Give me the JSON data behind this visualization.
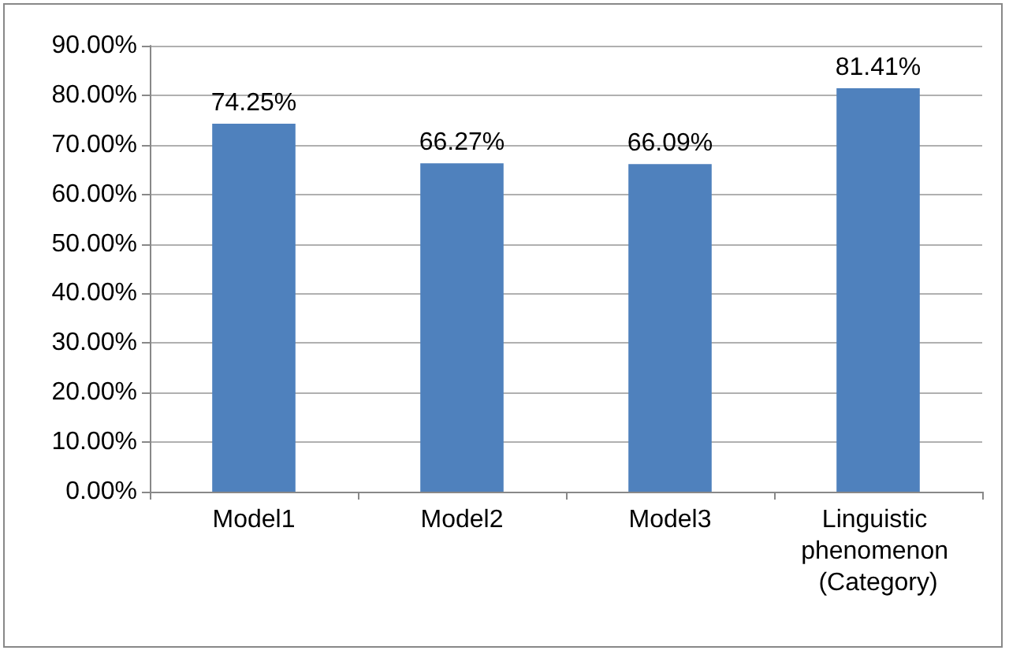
{
  "chart_data": {
    "type": "bar",
    "categories": [
      "Model1",
      "Model2",
      "Model3",
      "Linguistic phenomenon (Category)"
    ],
    "values": [
      74.25,
      66.27,
      66.09,
      81.41
    ],
    "value_labels": [
      "74.25%",
      "66.27%",
      "66.09%",
      "81.41%"
    ],
    "color": "#4f81bd",
    "ylim": [
      0,
      90
    ],
    "yticks": [
      {
        "value": 0,
        "label": "0.00%"
      },
      {
        "value": 10,
        "label": "10.00%"
      },
      {
        "value": 20,
        "label": "20.00%"
      },
      {
        "value": 30,
        "label": "30.00%"
      },
      {
        "value": 40,
        "label": "40.00%"
      },
      {
        "value": 50,
        "label": "50.00%"
      },
      {
        "value": 60,
        "label": "60.00%"
      },
      {
        "value": 70,
        "label": "70.00%"
      },
      {
        "value": 80,
        "label": "80.00%"
      },
      {
        "value": 90,
        "label": "90.00%"
      }
    ],
    "grid": "y"
  }
}
